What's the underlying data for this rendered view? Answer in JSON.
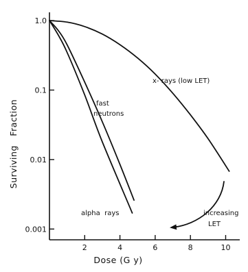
{
  "chart_data": {
    "type": "line",
    "title": "",
    "xlabel": "Dose (G y)",
    "ylabel": "Surviving   Fraction",
    "xlim": [
      0,
      10.8
    ],
    "ylim": [
      0.0007,
      1.2
    ],
    "y_scale": "log",
    "x_ticks": [
      2,
      4,
      6,
      8,
      10
    ],
    "x_tick_labels": [
      "2",
      "4",
      "6",
      "8",
      "10"
    ],
    "y_ticks": [
      1.0,
      0.1,
      0.01,
      0.001
    ],
    "y_tick_labels": [
      "1.0",
      "0.1",
      "0.01",
      "0.001"
    ],
    "grid": false,
    "legend": "none",
    "series": [
      {
        "name": "x- rays (low LET)",
        "x": [
          0,
          1,
          2,
          3,
          4,
          5,
          6,
          7,
          8,
          9,
          10.2
        ],
        "y": [
          1.0,
          0.95,
          0.82,
          0.64,
          0.45,
          0.29,
          0.17,
          0.09,
          0.044,
          0.02,
          0.0068
        ]
      },
      {
        "name": "fast neutrons",
        "x": [
          0,
          0.5,
          1,
          2,
          3,
          4,
          4.8
        ],
        "y": [
          1.0,
          0.72,
          0.45,
          0.13,
          0.035,
          0.0085,
          0.0026
        ]
      },
      {
        "name": "alpha rays",
        "x": [
          0,
          0.5,
          1,
          2,
          3,
          4.7
        ],
        "y": [
          1.0,
          0.62,
          0.35,
          0.085,
          0.018,
          0.0017
        ]
      }
    ],
    "annotations": [
      {
        "text": "x- rays (low LET)"
      },
      {
        "text": "fast"
      },
      {
        "text": "neutrons"
      },
      {
        "text": "alpha  rays"
      },
      {
        "text": "increasing"
      },
      {
        "text": "LET"
      }
    ]
  }
}
